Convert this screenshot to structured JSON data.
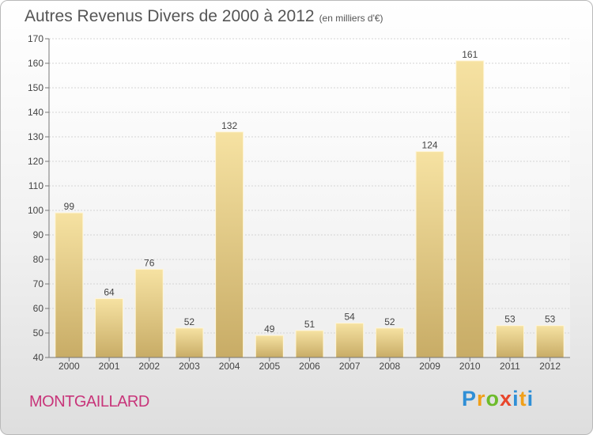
{
  "title": "Autres Revenus Divers de 2000 à 2012",
  "title_unit": "(en milliers d'€)",
  "commune": "MONTGAILLARD",
  "logo": {
    "letters": [
      "P",
      "r",
      "o",
      "x",
      "i",
      "t",
      "i"
    ],
    "colors": [
      "#2f8fd6",
      "#f0a01a",
      "#6dbb2b",
      "#e8462c",
      "#2f8fd6",
      "#f0a01a",
      "#2f8fd6"
    ]
  },
  "colors": {
    "bar_light": "#f6e2a2",
    "bar_dark": "#c8ac66",
    "title": "#555555",
    "commune": "#c8357a"
  },
  "chart_data": {
    "type": "bar",
    "title": "Autres Revenus Divers de 2000 à 2012",
    "categories": [
      "2000",
      "2001",
      "2002",
      "2003",
      "2004",
      "2005",
      "2006",
      "2007",
      "2008",
      "2009",
      "2010",
      "2011",
      "2012"
    ],
    "values": [
      99,
      64,
      76,
      52,
      132,
      49,
      51,
      54,
      52,
      124,
      161,
      53,
      53
    ],
    "ylim": [
      40,
      170
    ],
    "yticks": [
      40,
      50,
      60,
      70,
      80,
      90,
      100,
      110,
      120,
      130,
      140,
      150,
      160,
      170
    ],
    "grid": true,
    "legend": "none"
  }
}
